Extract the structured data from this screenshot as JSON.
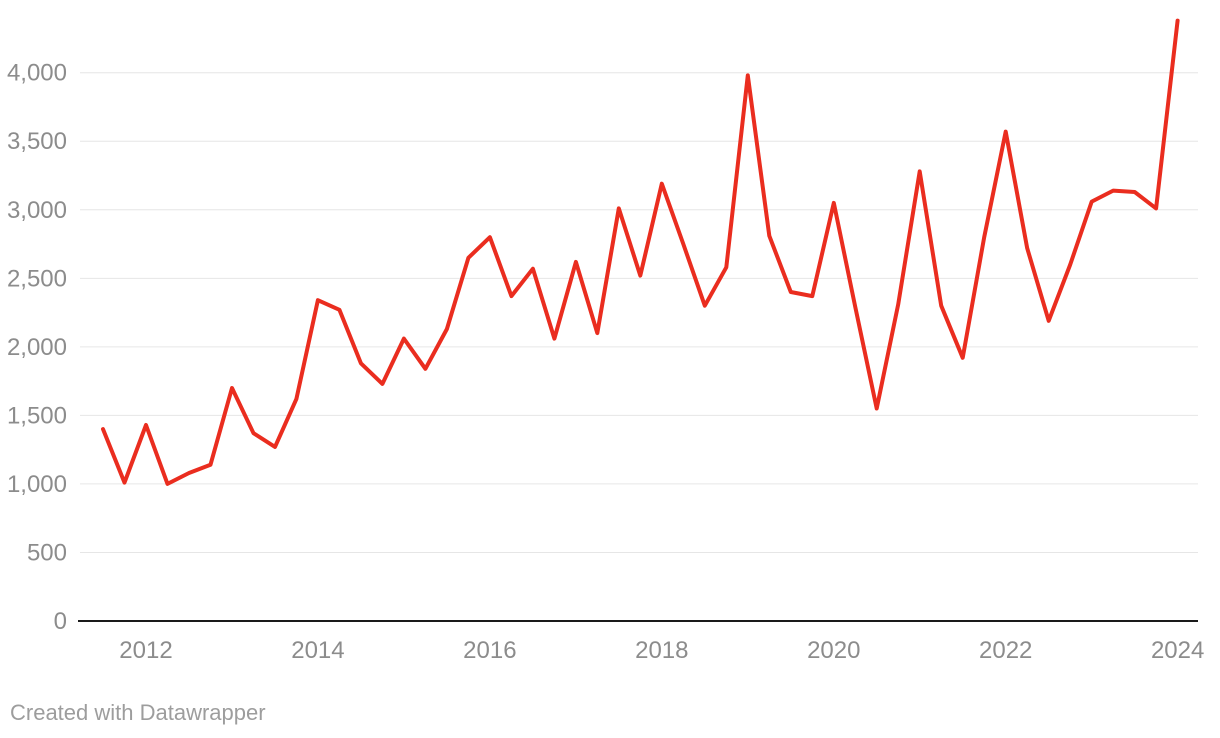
{
  "chart_data": {
    "type": "line",
    "title": "",
    "xlabel": "",
    "ylabel": "",
    "legend": "none",
    "grid": "horizontal",
    "x": [
      "2011-Q3",
      "2011-Q4",
      "2012-Q1",
      "2012-Q2",
      "2012-Q3",
      "2012-Q4",
      "2013-Q1",
      "2013-Q2",
      "2013-Q3",
      "2013-Q4",
      "2014-Q1",
      "2014-Q2",
      "2014-Q3",
      "2014-Q4",
      "2015-Q1",
      "2015-Q2",
      "2015-Q3",
      "2015-Q4",
      "2016-Q1",
      "2016-Q2",
      "2016-Q3",
      "2016-Q4",
      "2017-Q1",
      "2017-Q2",
      "2017-Q3",
      "2017-Q4",
      "2018-Q1",
      "2018-Q2",
      "2018-Q3",
      "2018-Q4",
      "2019-Q1",
      "2019-Q2",
      "2019-Q3",
      "2019-Q4",
      "2020-Q1",
      "2020-Q2",
      "2020-Q3",
      "2020-Q4",
      "2021-Q1",
      "2021-Q2",
      "2021-Q3",
      "2021-Q4",
      "2022-Q1",
      "2022-Q2",
      "2022-Q3",
      "2022-Q4",
      "2023-Q1",
      "2023-Q2",
      "2023-Q3",
      "2023-Q4",
      "2024-Q1"
    ],
    "values": [
      1400,
      1010,
      1430,
      1000,
      1080,
      1140,
      1700,
      1370,
      1270,
      1620,
      2340,
      2270,
      1880,
      1730,
      2060,
      1840,
      2130,
      2650,
      2800,
      2370,
      2570,
      2060,
      2620,
      2100,
      3010,
      2520,
      3190,
      2750,
      2300,
      2580,
      3980,
      2810,
      2400,
      2370,
      3050,
      2290,
      1550,
      2310,
      3280,
      2300,
      1920,
      2800,
      3570,
      2720,
      2190,
      2600,
      3060,
      3140,
      3130,
      3010,
      4380
    ],
    "x_tick_labels": [
      "2012",
      "2014",
      "2016",
      "2018",
      "2020",
      "2022",
      "2024"
    ],
    "y_tick_labels": [
      "0",
      "500",
      "1,000",
      "1,500",
      "2,000",
      "2,500",
      "3,000",
      "3,500",
      "4,000"
    ],
    "y_ticks": [
      0,
      500,
      1000,
      1500,
      2000,
      2500,
      3000,
      3500,
      4000
    ],
    "ylim": [
      0,
      4400
    ],
    "xlim_years": [
      2011.5,
      2024.0
    ]
  },
  "footer": {
    "attribution": "Created with Datawrapper"
  },
  "colors": {
    "line": "#ea2d1f",
    "grid": "#e6e6e6",
    "zero_axis": "#1a1a1a",
    "tick_label": "#8c8c8c",
    "attribution": "#9d9d9d",
    "background": "#ffffff"
  }
}
